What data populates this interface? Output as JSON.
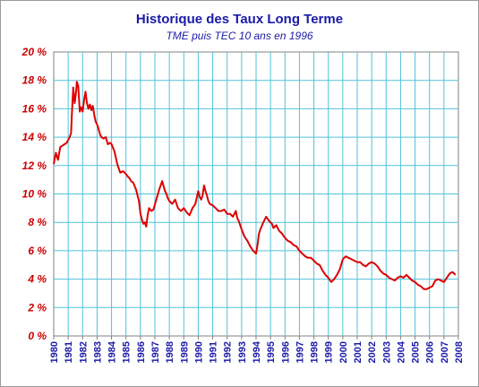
{
  "chart_data": {
    "type": "line",
    "title": "Historique des Taux Long Terme",
    "subtitle": "TME puis TEC 10 ans en 1996",
    "xlabel": "",
    "ylabel": "",
    "xlim": [
      1980,
      2008
    ],
    "ylim": [
      0,
      20
    ],
    "y_tick_labels": [
      "20 %",
      "18 %",
      "16 %",
      "14 %",
      "12 %",
      "10 %",
      "8 %",
      "6 %",
      "4 %",
      "2 %",
      "0 %"
    ],
    "x_tick_labels": [
      "1980",
      "1981",
      "1982",
      "1983",
      "1984",
      "1985",
      "1986",
      "1987",
      "1988",
      "1989",
      "1990",
      "1991",
      "1992",
      "1993",
      "1994",
      "1995",
      "1996",
      "1997",
      "1998",
      "1999",
      "2000",
      "2001",
      "2002",
      "2003",
      "2004",
      "2005",
      "2006",
      "2007",
      "2008"
    ],
    "grid": "horizontal",
    "series": [
      {
        "color": "#dd0000",
        "x": [
          1980.0,
          1980.15,
          1980.3,
          1980.45,
          1980.6,
          1980.75,
          1980.9,
          1981.0,
          1981.1,
          1981.2,
          1981.25,
          1981.35,
          1981.45,
          1981.55,
          1981.6,
          1981.7,
          1981.8,
          1981.9,
          1982.0,
          1982.1,
          1982.2,
          1982.3,
          1982.4,
          1982.5,
          1982.6,
          1982.7,
          1982.8,
          1982.9,
          1983.0,
          1983.1,
          1983.2,
          1983.3,
          1983.45,
          1983.6,
          1983.75,
          1983.9,
          1984.0,
          1984.2,
          1984.4,
          1984.6,
          1984.8,
          1985.0,
          1985.15,
          1985.25,
          1985.35,
          1985.5,
          1985.7,
          1985.9,
          1986.0,
          1986.1,
          1986.2,
          1986.3,
          1986.4,
          1986.5,
          1986.6,
          1986.75,
          1986.9,
          1987.1,
          1987.3,
          1987.5,
          1987.7,
          1987.8,
          1987.9,
          1988.0,
          1988.2,
          1988.4,
          1988.6,
          1988.8,
          1989.0,
          1989.2,
          1989.4,
          1989.6,
          1989.8,
          1990.0,
          1990.1,
          1990.2,
          1990.3,
          1990.4,
          1990.5,
          1990.6,
          1990.7,
          1990.8,
          1991.0,
          1991.2,
          1991.4,
          1991.6,
          1991.8,
          1992.0,
          1992.2,
          1992.4,
          1992.6,
          1992.7,
          1992.8,
          1993.0,
          1993.2,
          1993.4,
          1993.6,
          1993.8,
          1994.0,
          1994.1,
          1994.2,
          1994.3,
          1994.5,
          1994.7,
          1994.9,
          1995.1,
          1995.2,
          1995.4,
          1995.6,
          1995.8,
          1996.0,
          1996.2,
          1996.4,
          1996.6,
          1996.8,
          1997.0,
          1997.2,
          1997.4,
          1997.6,
          1997.8,
          1998.0,
          1998.2,
          1998.4,
          1998.6,
          1998.8,
          1999.0,
          1999.2,
          1999.4,
          1999.6,
          1999.8,
          2000.0,
          2000.2,
          2000.4,
          2000.6,
          2000.8,
          2001.0,
          2001.2,
          2001.4,
          2001.6,
          2001.8,
          2002.0,
          2002.2,
          2002.4,
          2002.6,
          2002.8,
          2003.0,
          2003.2,
          2003.4,
          2003.6,
          2003.8,
          2004.0,
          2004.2,
          2004.4,
          2004.6,
          2004.8,
          2005.0,
          2005.2,
          2005.4,
          2005.6,
          2005.8,
          2006.0,
          2006.2,
          2006.4,
          2006.6,
          2006.8,
          2007.0,
          2007.2,
          2007.4,
          2007.6,
          2007.8
        ],
        "y": [
          12.1,
          12.9,
          12.4,
          13.3,
          13.4,
          13.5,
          13.6,
          13.8,
          14.0,
          14.3,
          15.5,
          17.5,
          16.4,
          17.2,
          17.9,
          17.6,
          15.8,
          16.1,
          15.8,
          16.6,
          17.2,
          16.4,
          16.0,
          16.3,
          15.9,
          16.2,
          15.6,
          15.1,
          14.9,
          14.6,
          14.2,
          14.0,
          13.9,
          14.0,
          13.5,
          13.6,
          13.5,
          13.0,
          12.1,
          11.5,
          11.6,
          11.4,
          11.2,
          11.1,
          10.9,
          10.8,
          10.3,
          9.5,
          8.6,
          8.2,
          7.9,
          8.0,
          7.7,
          8.5,
          9.0,
          8.8,
          8.9,
          9.6,
          10.3,
          10.9,
          10.2,
          10.0,
          9.7,
          9.5,
          9.3,
          9.6,
          9.0,
          8.8,
          9.0,
          8.7,
          8.5,
          9.0,
          9.3,
          10.2,
          9.8,
          9.6,
          9.9,
          10.6,
          10.2,
          9.9,
          9.5,
          9.3,
          9.2,
          9.0,
          8.8,
          8.8,
          8.9,
          8.6,
          8.6,
          8.4,
          8.8,
          8.3,
          8.1,
          7.5,
          7.0,
          6.7,
          6.3,
          6.0,
          5.8,
          6.4,
          7.2,
          7.5,
          8.0,
          8.4,
          8.1,
          7.9,
          7.6,
          7.8,
          7.4,
          7.2,
          6.9,
          6.7,
          6.6,
          6.4,
          6.3,
          6.0,
          5.8,
          5.6,
          5.5,
          5.5,
          5.3,
          5.1,
          5.0,
          4.6,
          4.3,
          4.1,
          3.8,
          4.0,
          4.3,
          4.7,
          5.4,
          5.6,
          5.5,
          5.4,
          5.3,
          5.2,
          5.2,
          5.0,
          4.9,
          5.1,
          5.2,
          5.1,
          4.9,
          4.6,
          4.4,
          4.3,
          4.1,
          4.0,
          3.9,
          4.1,
          4.2,
          4.1,
          4.3,
          4.1,
          3.9,
          3.8,
          3.6,
          3.5,
          3.3,
          3.3,
          3.4,
          3.5,
          3.9,
          4.0,
          3.9,
          3.8,
          4.1,
          4.4,
          4.5,
          4.3
        ]
      }
    ]
  }
}
